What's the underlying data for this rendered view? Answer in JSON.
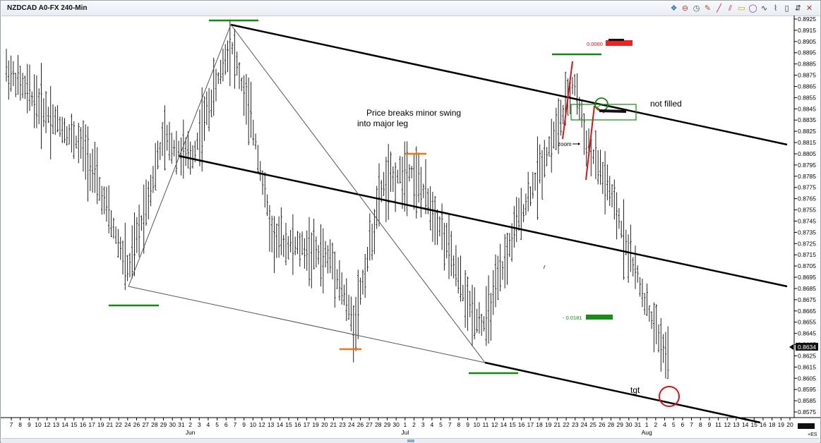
{
  "window": {
    "title": "NZDCAD A0-FX 240-Min"
  },
  "toolbar": [
    {
      "icon": "layers-icon",
      "glyph": "❖",
      "color": "#2d6fa8"
    },
    {
      "icon": "no-entry-icon",
      "glyph": "⊖",
      "color": "#c0392b"
    },
    {
      "icon": "clock-icon",
      "glyph": "◷",
      "color": "#555555"
    },
    {
      "icon": "pen-icon",
      "glyph": "✎",
      "color": "#a0522d"
    },
    {
      "icon": "trendline-icon",
      "glyph": "╱",
      "color": "#b03030"
    },
    {
      "icon": "parallel-lines-icon",
      "glyph": "⫽",
      "color": "#b03030"
    },
    {
      "icon": "label-icon",
      "glyph": "▭",
      "color": "#c8a400"
    },
    {
      "icon": "circle-icon",
      "glyph": "◯",
      "color": "#7a3fa0"
    },
    {
      "icon": "wave-icon",
      "glyph": "∿",
      "color": "#333333"
    },
    {
      "icon": "bar-icon",
      "glyph": "⌇",
      "color": "#333333"
    },
    {
      "icon": "candle-icon",
      "glyph": "▯",
      "color": "#333333"
    },
    {
      "icon": "arrows-icon",
      "glyph": "⇵",
      "color": "#333333"
    },
    {
      "icon": "close-icon",
      "glyph": "✕",
      "color": "#b03030"
    }
  ],
  "chart_data": {
    "type": "bar",
    "symbol": "NZDCAD A0-FX 240-Min",
    "ylim": [
      0.8575,
      0.8925
    ],
    "y_ticks": [
      "0.8925",
      "0.8915",
      "0.8905",
      "0.8895",
      "0.8885",
      "0.8875",
      "0.8865",
      "0.8855",
      "0.8845",
      "0.8835",
      "0.8825",
      "0.8815",
      "0.8805",
      "0.8795",
      "0.8785",
      "0.8775",
      "0.8765",
      "0.8755",
      "0.8745",
      "0.8735",
      "0.8725",
      "0.8715",
      "0.8705",
      "0.8695",
      "0.8685",
      "0.8675",
      "0.8665",
      "0.8655",
      "0.8645",
      "0.8635",
      "0.8625",
      "0.8615",
      "0.8605",
      "0.8595",
      "0.8585",
      "0.8575"
    ],
    "last_price": "0.8634",
    "x_tick_labels": [
      "7",
      "8",
      "9",
      "10",
      "12",
      "13",
      "14",
      "15",
      "16",
      "17",
      "19",
      "21",
      "22",
      "24",
      "26",
      "27",
      "28",
      "29",
      "30",
      "31",
      "2",
      "3",
      "4",
      "5",
      "6",
      "7",
      "9",
      "10",
      "12",
      "13",
      "14",
      "15",
      "16",
      "17",
      "19",
      "20",
      "21",
      "23",
      "24",
      "26",
      "27",
      "28",
      "29",
      "30",
      "1",
      "2",
      "3",
      "4",
      "5",
      "7",
      "8",
      "9",
      "10",
      "11",
      "12",
      "14",
      "15",
      "16",
      "17",
      "18",
      "19",
      "21",
      "22",
      "23",
      "24",
      "25",
      "26",
      "28",
      "29",
      "30",
      "31",
      "1",
      "2",
      "4",
      "5",
      "6",
      "7",
      "8",
      "9",
      "11",
      "12",
      "13",
      "14",
      "15",
      "16",
      "18",
      "19",
      "20"
    ],
    "months": [
      "Jun",
      "Jul",
      "Aug"
    ],
    "corner_label": "+ES",
    "swing_points": [
      {
        "date": "Jun 22",
        "price": 0.8688
      },
      {
        "date": "Jun 5",
        "price": 0.892
      },
      {
        "date": "Jul 21",
        "price": 0.8646
      },
      {
        "date": "Jul 10",
        "price": 0.862
      },
      {
        "date": "Jul 23",
        "price": 0.8892
      },
      {
        "date": "Jul 24",
        "price": 0.8782
      },
      {
        "date": "Aug 4",
        "price": 0.8588
      }
    ],
    "channel": {
      "upper": [
        {
          "date": "Jun 5",
          "price": 0.892
        },
        {
          "date": "Aug 20",
          "price": 0.8812
        }
      ],
      "middle": [
        {
          "date": "May 29",
          "price": 0.8804
        },
        {
          "date": "Aug 20",
          "price": 0.8688
        }
      ],
      "lower": [
        {
          "date": "Jul 10",
          "price": 0.862
        },
        {
          "date": "Aug 18",
          "price": 0.8572
        }
      ]
    },
    "annotations": {
      "breaks": "Price breaks minor swing",
      "breaks_2": "into major leg",
      "not_filled": "not filled",
      "zoom": "zoom",
      "tgt": "tgt",
      "red_value": "0.0060",
      "green_value": "- 0.0181"
    },
    "grid": false
  }
}
